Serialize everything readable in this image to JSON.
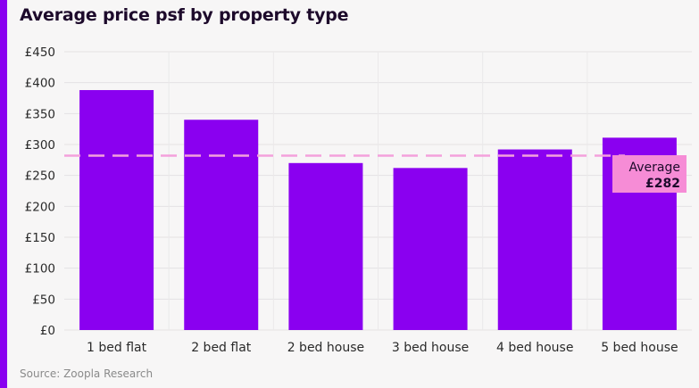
{
  "header": {
    "title": "Average price psf by property type"
  },
  "footer": {
    "source": "Source: Zoopla Research"
  },
  "colors": {
    "bar": "#8a00f0",
    "average_line": "#f4a0dc",
    "average_box": "#f68cd6",
    "accent_bar": "#8a00f0"
  },
  "chart_data": {
    "type": "bar",
    "title": "Average price psf by property type",
    "xlabel": "",
    "ylabel": "",
    "categories": [
      "1 bed flat",
      "2 bed flat",
      "2 bed house",
      "3 bed house",
      "4 bed house",
      "5 bed house"
    ],
    "values": [
      388,
      340,
      270,
      262,
      292,
      311
    ],
    "ylim": [
      0,
      450
    ],
    "yticks": [
      0,
      50,
      100,
      150,
      200,
      250,
      300,
      350,
      400,
      450
    ],
    "ytick_labels": [
      "£0",
      "£50",
      "£100",
      "£150",
      "£200",
      "£250",
      "£300",
      "£350",
      "£400",
      "£450"
    ],
    "grid": true,
    "reference_line": {
      "value": 282,
      "label": "Average",
      "value_label": "£282",
      "style": "dashed"
    }
  }
}
